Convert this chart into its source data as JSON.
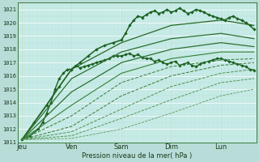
{
  "background_color": "#b8dcd8",
  "plot_bg_color": "#c8ece8",
  "grid_color_major": "#a0c8c4",
  "grid_color_minor": "#b4dcd8",
  "ylabel_text": "Pression niveau de la mer( hPa )",
  "ylim": [
    1011,
    1021.5
  ],
  "yticks": [
    1011,
    1012,
    1013,
    1014,
    1015,
    1016,
    1017,
    1018,
    1019,
    1020,
    1021
  ],
  "xtick_labels": [
    "Jeu",
    "Ven",
    "Sam",
    "Dim",
    "Lun"
  ],
  "xtick_pos": [
    0,
    24,
    48,
    72,
    96
  ],
  "xlim": [
    -2,
    113
  ],
  "vlines_x": [
    0,
    24,
    48,
    72,
    96
  ],
  "series": [
    {
      "x": [
        0,
        4,
        8,
        10,
        12,
        14,
        16,
        18,
        20,
        22,
        24,
        26,
        28,
        30,
        32,
        34,
        36,
        38,
        40,
        42,
        44,
        46,
        48,
        50,
        52,
        54,
        56,
        58,
        60,
        62,
        64,
        66,
        68,
        70,
        72,
        74,
        76,
        78,
        80,
        82,
        84,
        86,
        88,
        90,
        92,
        94,
        96,
        98,
        100,
        102,
        104,
        106,
        108,
        110,
        112
      ],
      "y": [
        1011.2,
        1011.5,
        1012.0,
        1012.5,
        1013.2,
        1014.0,
        1015.0,
        1015.8,
        1016.2,
        1016.5,
        1016.5,
        1016.8,
        1016.6,
        1016.7,
        1016.8,
        1016.9,
        1017.0,
        1017.1,
        1017.2,
        1017.3,
        1017.5,
        1017.5,
        1017.5,
        1017.6,
        1017.7,
        1017.5,
        1017.6,
        1017.4,
        1017.3,
        1017.3,
        1017.1,
        1017.2,
        1017.0,
        1016.9,
        1017.0,
        1017.1,
        1016.8,
        1016.9,
        1017.0,
        1016.8,
        1016.7,
        1016.9,
        1017.0,
        1017.1,
        1017.2,
        1017.3,
        1017.3,
        1017.2,
        1017.1,
        1017.0,
        1016.9,
        1016.8,
        1016.7,
        1016.5,
        1016.4
      ],
      "style": "-",
      "color": "#1a6020",
      "lw": 1.0,
      "marker": "D",
      "ms": 1.8
    },
    {
      "x": [
        0,
        6,
        12,
        18,
        24,
        28,
        32,
        36,
        40,
        44,
        48,
        50,
        52,
        54,
        56,
        58,
        60,
        62,
        64,
        66,
        68,
        70,
        72,
        74,
        76,
        78,
        80,
        82,
        84,
        86,
        88,
        90,
        92,
        94,
        96,
        98,
        100,
        102,
        104,
        106,
        108,
        110,
        112
      ],
      "y": [
        1011.2,
        1012.5,
        1013.8,
        1015.2,
        1016.5,
        1017.0,
        1017.5,
        1018.0,
        1018.3,
        1018.5,
        1018.7,
        1019.2,
        1019.8,
        1020.2,
        1020.5,
        1020.4,
        1020.6,
        1020.8,
        1020.9,
        1020.7,
        1020.8,
        1021.0,
        1020.8,
        1020.9,
        1021.1,
        1020.9,
        1020.7,
        1020.8,
        1021.0,
        1020.9,
        1020.8,
        1020.6,
        1020.5,
        1020.4,
        1020.3,
        1020.2,
        1020.4,
        1020.5,
        1020.3,
        1020.2,
        1020.0,
        1019.8,
        1019.5
      ],
      "style": "-",
      "color": "#1a6020",
      "lw": 1.1,
      "marker": "D",
      "ms": 1.8
    },
    {
      "x": [
        0,
        24,
        48,
        72,
        96,
        112
      ],
      "y": [
        1011.2,
        1016.5,
        1018.5,
        1019.8,
        1020.2,
        1019.8
      ],
      "style": "-",
      "color": "#256825",
      "lw": 0.9,
      "marker": null,
      "ms": 0
    },
    {
      "x": [
        0,
        24,
        48,
        72,
        96,
        112
      ],
      "y": [
        1011.2,
        1015.8,
        1017.8,
        1018.8,
        1019.2,
        1018.8
      ],
      "style": "-",
      "color": "#2a7030",
      "lw": 0.9,
      "marker": null,
      "ms": 0
    },
    {
      "x": [
        0,
        24,
        48,
        72,
        96,
        112
      ],
      "y": [
        1011.2,
        1014.8,
        1017.0,
        1018.0,
        1018.5,
        1018.2
      ],
      "style": "-",
      "color": "#2a7030",
      "lw": 0.9,
      "marker": null,
      "ms": 0
    },
    {
      "x": [
        0,
        24,
        48,
        72,
        96,
        112
      ],
      "y": [
        1011.2,
        1013.8,
        1016.2,
        1017.3,
        1017.8,
        1017.8
      ],
      "style": "-",
      "color": "#358035",
      "lw": 0.8,
      "marker": null,
      "ms": 0
    },
    {
      "x": [
        0,
        24,
        48,
        72,
        96,
        112
      ],
      "y": [
        1011.2,
        1013.0,
        1015.5,
        1016.7,
        1017.2,
        1017.3
      ],
      "style": "--",
      "color": "#408040",
      "lw": 0.75,
      "marker": null,
      "ms": 0
    },
    {
      "x": [
        0,
        24,
        48,
        72,
        96,
        112
      ],
      "y": [
        1011.2,
        1012.2,
        1014.5,
        1016.0,
        1016.8,
        1017.0
      ],
      "style": "--",
      "color": "#408040",
      "lw": 0.75,
      "marker": null,
      "ms": 0
    },
    {
      "x": [
        0,
        24,
        48,
        72,
        96,
        112
      ],
      "y": [
        1011.2,
        1011.8,
        1013.5,
        1015.2,
        1016.2,
        1016.5
      ],
      "style": "--",
      "color": "#4a904a",
      "lw": 0.7,
      "marker": null,
      "ms": 0
    },
    {
      "x": [
        0,
        24,
        48,
        72,
        96,
        112
      ],
      "y": [
        1011.2,
        1011.5,
        1012.8,
        1014.2,
        1015.5,
        1015.8
      ],
      "style": "--",
      "color": "#4a904a",
      "lw": 0.65,
      "marker": null,
      "ms": 0
    },
    {
      "x": [
        0,
        24,
        48,
        72,
        96,
        112
      ],
      "y": [
        1011.2,
        1011.3,
        1012.0,
        1013.2,
        1014.5,
        1015.0
      ],
      "style": "--",
      "color": "#5a9a5a",
      "lw": 0.6,
      "marker": null,
      "ms": 0
    }
  ]
}
